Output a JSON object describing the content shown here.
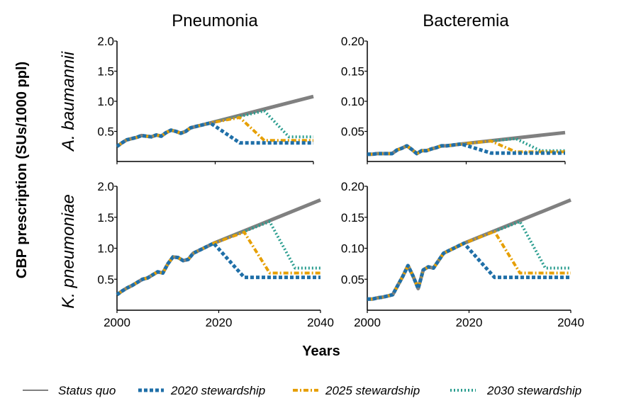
{
  "chart_data": {
    "type": "line",
    "ylabel": "CBP prescription (SUs/1000 ppl)",
    "xlabel": "Years",
    "columns": [
      "Pneumonia",
      "Bacteremia"
    ],
    "rows": [
      "A. baumannii",
      "K. pneumoniae"
    ],
    "xlim": [
      2000,
      2040
    ],
    "xticks": [
      "2000",
      "2020",
      "2040"
    ],
    "legend": {
      "placement": "bottom",
      "entries": [
        "Status quo",
        "2020 stewardship",
        "2025 stewardship",
        "2030 stewardship"
      ]
    },
    "colors": {
      "status_quo": "#808080",
      "s2020": "#1f6fa8",
      "s2025": "#e69f00",
      "s2030": "#2a9d8f"
    },
    "panels": [
      {
        "column": "Pneumonia",
        "row": "A. baumannii",
        "ylim": [
          0,
          2.0
        ],
        "yticks": [
          "0.5",
          "1.0",
          "1.5",
          "2.0"
        ],
        "x": [
          2000,
          2001,
          2002,
          2003,
          2004,
          2005,
          2006,
          2007,
          2008,
          2009,
          2010,
          2011,
          2012,
          2013,
          2014,
          2015,
          2016,
          2017,
          2018,
          2019
        ],
        "history": [
          0.25,
          0.31,
          0.36,
          0.38,
          0.4,
          0.43,
          0.42,
          0.41,
          0.44,
          0.42,
          0.48,
          0.52,
          0.5,
          0.47,
          0.5,
          0.56,
          0.58,
          0.6,
          0.62,
          0.64
        ],
        "series": [
          {
            "name": "Status quo",
            "x": [
              2019,
              2040
            ],
            "values": [
              0.64,
              1.08
            ]
          },
          {
            "name": "2020 stewardship",
            "x": [
              2019,
              2025,
              2040
            ],
            "values": [
              0.64,
              0.31,
              0.31
            ]
          },
          {
            "name": "2025 stewardship",
            "x": [
              2019,
              2025,
              2030,
              2040
            ],
            "values": [
              0.64,
              0.73,
              0.35,
              0.35
            ]
          },
          {
            "name": "2030 stewardship",
            "x": [
              2019,
              2030,
              2035,
              2040
            ],
            "values": [
              0.64,
              0.84,
              0.41,
              0.41
            ]
          }
        ]
      },
      {
        "column": "Bacteremia",
        "row": "A. baumannii",
        "ylim": [
          0,
          0.2
        ],
        "yticks": [
          "0.05",
          "0.10",
          "0.15",
          "0.20"
        ],
        "x": [
          2000,
          2001,
          2002,
          2003,
          2004,
          2005,
          2006,
          2007,
          2008,
          2009,
          2010,
          2011,
          2012,
          2013,
          2014,
          2015,
          2016,
          2017,
          2018,
          2019
        ],
        "history": [
          0.012,
          0.012,
          0.013,
          0.013,
          0.013,
          0.013,
          0.019,
          0.022,
          0.026,
          0.02,
          0.013,
          0.018,
          0.018,
          0.021,
          0.023,
          0.026,
          0.026,
          0.027,
          0.028,
          0.029
        ],
        "series": [
          {
            "name": "Status quo",
            "x": [
              2019,
              2040
            ],
            "values": [
              0.029,
              0.048
            ]
          },
          {
            "name": "2020 stewardship",
            "x": [
              2019,
              2025,
              2040
            ],
            "values": [
              0.029,
              0.014,
              0.014
            ]
          },
          {
            "name": "2025 stewardship",
            "x": [
              2019,
              2025,
              2030,
              2040
            ],
            "values": [
              0.029,
              0.034,
              0.016,
              0.016
            ]
          },
          {
            "name": "2030 stewardship",
            "x": [
              2019,
              2030,
              2035,
              2040
            ],
            "values": [
              0.029,
              0.038,
              0.018,
              0.018
            ]
          }
        ]
      },
      {
        "column": "Pneumonia",
        "row": "K. pneumoniae",
        "ylim": [
          0,
          2.0
        ],
        "yticks": [
          "0.5",
          "1.0",
          "1.5",
          "2.0"
        ],
        "x": [
          2000,
          2001,
          2002,
          2003,
          2004,
          2005,
          2006,
          2007,
          2008,
          2009,
          2010,
          2011,
          2012,
          2013,
          2014,
          2015,
          2016,
          2017,
          2018,
          2019
        ],
        "history": [
          0.25,
          0.31,
          0.36,
          0.4,
          0.45,
          0.5,
          0.52,
          0.57,
          0.62,
          0.6,
          0.75,
          0.86,
          0.85,
          0.8,
          0.82,
          0.92,
          0.96,
          1.0,
          1.04,
          1.08
        ],
        "series": [
          {
            "name": "Status quo",
            "x": [
              2019,
              2040
            ],
            "values": [
              1.08,
              1.78
            ]
          },
          {
            "name": "2020 stewardship",
            "x": [
              2019,
              2025,
              2040
            ],
            "values": [
              1.08,
              0.53,
              0.53
            ]
          },
          {
            "name": "2025 stewardship",
            "x": [
              2019,
              2025,
              2030,
              2040
            ],
            "values": [
              1.08,
              1.26,
              0.6,
              0.6
            ]
          },
          {
            "name": "2030 stewardship",
            "x": [
              2019,
              2030,
              2035,
              2040
            ],
            "values": [
              1.08,
              1.43,
              0.68,
              0.68
            ]
          }
        ]
      },
      {
        "column": "Bacteremia",
        "row": "K. pneumoniae",
        "ylim": [
          0,
          0.2
        ],
        "yticks": [
          "0.05",
          "0.10",
          "0.15",
          "0.20"
        ],
        "x": [
          2000,
          2001,
          2002,
          2003,
          2004,
          2005,
          2006,
          2007,
          2008,
          2009,
          2010,
          2011,
          2012,
          2013,
          2014,
          2015,
          2016,
          2017,
          2018,
          2019
        ],
        "history": [
          0.018,
          0.018,
          0.02,
          0.021,
          0.023,
          0.025,
          0.04,
          0.055,
          0.072,
          0.055,
          0.035,
          0.065,
          0.07,
          0.068,
          0.08,
          0.092,
          0.096,
          0.1,
          0.104,
          0.108
        ],
        "series": [
          {
            "name": "Status quo",
            "x": [
              2019,
              2040
            ],
            "values": [
              0.108,
              0.178
            ]
          },
          {
            "name": "2020 stewardship",
            "x": [
              2019,
              2025,
              2040
            ],
            "values": [
              0.108,
              0.053,
              0.053
            ]
          },
          {
            "name": "2025 stewardship",
            "x": [
              2019,
              2025,
              2030,
              2040
            ],
            "values": [
              0.108,
              0.127,
              0.06,
              0.06
            ]
          },
          {
            "name": "2030 stewardship",
            "x": [
              2019,
              2030,
              2035,
              2040
            ],
            "values": [
              0.108,
              0.143,
              0.068,
              0.068
            ]
          }
        ]
      }
    ]
  }
}
